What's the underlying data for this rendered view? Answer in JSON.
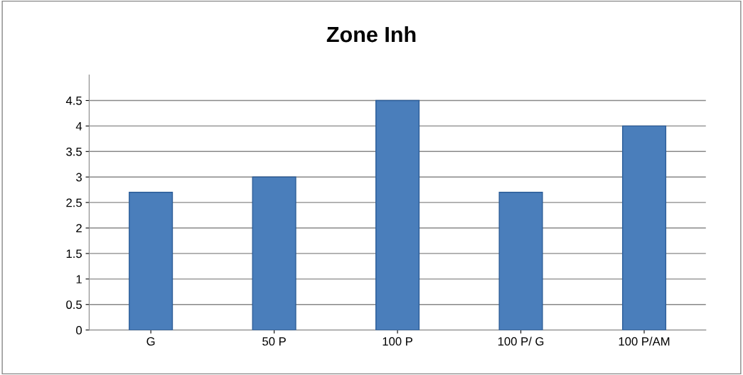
{
  "chart_data": {
    "type": "bar",
    "title": "Zone Inh",
    "categories": [
      "G",
      "50 P",
      "100 P",
      "100 P/ G",
      "100 P/AM"
    ],
    "values": [
      2.7,
      3.0,
      4.5,
      2.7,
      4.0
    ],
    "color": "#4a7ebb",
    "ylim": [
      0,
      5
    ],
    "yticks": [
      0,
      0.5,
      1,
      1.5,
      2,
      2.5,
      3,
      3.5,
      4,
      4.5
    ],
    "grid": "y"
  }
}
